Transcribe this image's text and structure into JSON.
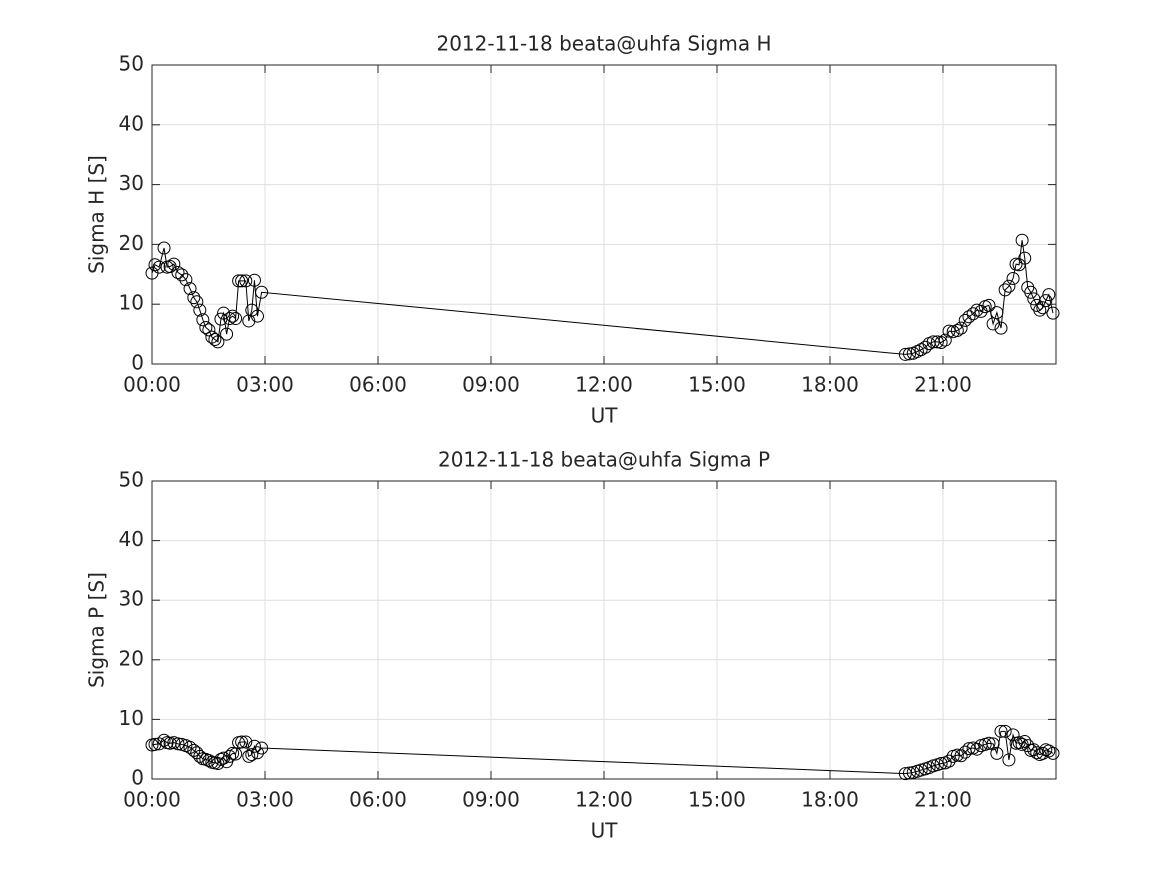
{
  "chart_data": [
    {
      "type": "line",
      "title": "2012-11-18  beata@uhfa Sigma H",
      "xlabel": "UT",
      "ylabel": "Sigma H [S]",
      "color": "#000000",
      "marker": "circle",
      "grid": true,
      "xlim": [
        0,
        24
      ],
      "ylim": [
        0,
        50
      ],
      "xticks": [
        {
          "value": 0,
          "label": "00:00"
        },
        {
          "value": 3,
          "label": "03:00"
        },
        {
          "value": 6,
          "label": "06:00"
        },
        {
          "value": 9,
          "label": "09:00"
        },
        {
          "value": 12,
          "label": "12:00"
        },
        {
          "value": 15,
          "label": "15:00"
        },
        {
          "value": 18,
          "label": "18:00"
        },
        {
          "value": 21,
          "label": "21:00"
        }
      ],
      "yticks": [
        0,
        10,
        20,
        30,
        40,
        50
      ],
      "x": [
        0,
        0.08,
        0.19,
        0.32,
        0.4,
        0.48,
        0.58,
        0.69,
        0.79,
        0.9,
        1.01,
        1.11,
        1.19,
        1.27,
        1.35,
        1.43,
        1.51,
        1.59,
        1.67,
        1.75,
        1.83,
        1.9,
        1.98,
        2.06,
        2.14,
        2.22,
        2.3,
        2.38,
        2.49,
        2.57,
        2.65,
        2.72,
        2.8,
        2.91,
        20.0,
        20.11,
        20.21,
        20.32,
        20.42,
        20.53,
        20.63,
        20.74,
        20.85,
        20.95,
        21.06,
        21.16,
        21.27,
        21.38,
        21.48,
        21.59,
        21.69,
        21.8,
        21.9,
        22.01,
        22.12,
        22.22,
        22.33,
        22.43,
        22.54,
        22.65,
        22.75,
        22.86,
        22.94,
        23.02,
        23.1,
        23.17,
        23.25,
        23.33,
        23.41,
        23.49,
        23.57,
        23.65,
        23.73,
        23.81,
        23.92
      ],
      "values": [
        15.2,
        16.6,
        16.2,
        19.4,
        16.2,
        16.3,
        16.7,
        15.3,
        14.9,
        14.1,
        12.6,
        11.1,
        10.4,
        9.0,
        7.4,
        6.1,
        5.7,
        4.5,
        4.1,
        3.7,
        7.5,
        8.5,
        5.0,
        7.6,
        8.0,
        7.6,
        13.9,
        13.9,
        13.9,
        7.2,
        9.0,
        14.0,
        8.0,
        12.0,
        1.6,
        1.7,
        1.8,
        2.1,
        2.4,
        2.8,
        3.4,
        3.7,
        3.7,
        3.6,
        4.0,
        5.5,
        5.4,
        5.6,
        6.0,
        7.3,
        7.9,
        8.4,
        9.0,
        8.8,
        9.6,
        9.8,
        6.7,
        8.6,
        6.0,
        12.4,
        13.0,
        14.3,
        16.7,
        16.6,
        20.7,
        17.7,
        12.8,
        12.0,
        10.9,
        9.8,
        9.0,
        9.4,
        10.6,
        11.6,
        8.5
      ]
    },
    {
      "type": "line",
      "title": "2012-11-18  beata@uhfa Sigma P",
      "xlabel": "UT",
      "ylabel": "Sigma P [S]",
      "color": "#000000",
      "marker": "circle",
      "grid": true,
      "xlim": [
        0,
        24
      ],
      "ylim": [
        0,
        50
      ],
      "xticks": [
        {
          "value": 0,
          "label": "00:00"
        },
        {
          "value": 3,
          "label": "03:00"
        },
        {
          "value": 6,
          "label": "06:00"
        },
        {
          "value": 9,
          "label": "09:00"
        },
        {
          "value": 12,
          "label": "12:00"
        },
        {
          "value": 15,
          "label": "15:00"
        },
        {
          "value": 18,
          "label": "18:00"
        },
        {
          "value": 21,
          "label": "21:00"
        }
      ],
      "yticks": [
        0,
        10,
        20,
        30,
        40,
        50
      ],
      "x": [
        0,
        0.08,
        0.19,
        0.32,
        0.4,
        0.48,
        0.58,
        0.69,
        0.79,
        0.9,
        1.01,
        1.11,
        1.19,
        1.27,
        1.35,
        1.43,
        1.51,
        1.59,
        1.67,
        1.75,
        1.83,
        1.9,
        1.98,
        2.06,
        2.14,
        2.22,
        2.3,
        2.38,
        2.49,
        2.57,
        2.65,
        2.72,
        2.8,
        2.91,
        20.0,
        20.11,
        20.21,
        20.32,
        20.42,
        20.53,
        20.63,
        20.74,
        20.85,
        20.95,
        21.06,
        21.16,
        21.27,
        21.38,
        21.48,
        21.59,
        21.69,
        21.8,
        21.9,
        22.01,
        22.12,
        22.22,
        22.33,
        22.43,
        22.54,
        22.65,
        22.75,
        22.86,
        22.94,
        23.02,
        23.1,
        23.17,
        23.25,
        23.33,
        23.41,
        23.49,
        23.57,
        23.65,
        23.73,
        23.81,
        23.92
      ],
      "values": [
        5.7,
        5.8,
        5.9,
        6.5,
        6.1,
        6.0,
        6.1,
        5.9,
        5.8,
        5.6,
        5.3,
        4.8,
        4.4,
        3.8,
        3.4,
        3.3,
        3.1,
        2.8,
        2.7,
        2.6,
        3.3,
        3.5,
        2.9,
        3.8,
        4.3,
        4.2,
        6.1,
        6.2,
        6.2,
        3.8,
        4.1,
        5.5,
        4.4,
        5.2,
        0.9,
        1.0,
        1.1,
        1.3,
        1.5,
        1.7,
        1.9,
        2.2,
        2.4,
        2.6,
        2.7,
        3.0,
        3.8,
        4.0,
        3.9,
        4.5,
        5.1,
        5.2,
        5.0,
        5.6,
        5.8,
        6.0,
        5.9,
        4.3,
        8.0,
        8.0,
        3.2,
        7.4,
        6.0,
        6.1,
        5.8,
        6.3,
        5.6,
        4.8,
        4.9,
        4.4,
        4.1,
        4.3,
        4.9,
        4.7,
        4.3
      ]
    }
  ]
}
